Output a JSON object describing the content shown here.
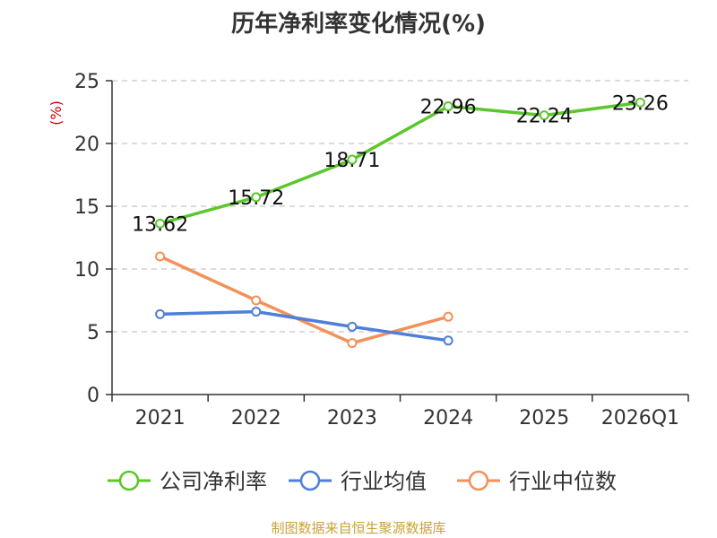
{
  "chart_data": {
    "type": "line",
    "title": "历年净利率变化情况(%)",
    "ylabel": "(%)",
    "ylabel_color": "#cc0000",
    "categories": [
      "2021",
      "2022",
      "2023",
      "2024",
      "2025",
      "2026Q1"
    ],
    "ylim": [
      0,
      25
    ],
    "yticks": [
      0,
      5,
      10,
      15,
      20,
      25
    ],
    "grid": true,
    "legend_position": "bottom",
    "series": [
      {
        "name": "公司净利率",
        "color": "#5cc72b",
        "values": [
          13.62,
          15.72,
          18.71,
          22.96,
          22.24,
          23.26
        ],
        "labels": [
          "13.62",
          "15.72",
          "18.71",
          "22.96",
          "22.24",
          "23.26"
        ]
      },
      {
        "name": "行业均值",
        "color": "#4f7fd8",
        "values": [
          6.4,
          6.6,
          5.4,
          4.3,
          null,
          null
        ]
      },
      {
        "name": "行业中位数",
        "color": "#f2915a",
        "values": [
          11.0,
          7.5,
          4.1,
          6.2,
          null,
          null
        ]
      }
    ]
  },
  "footer": {
    "source": "制图数据来自恒生聚源数据库"
  }
}
